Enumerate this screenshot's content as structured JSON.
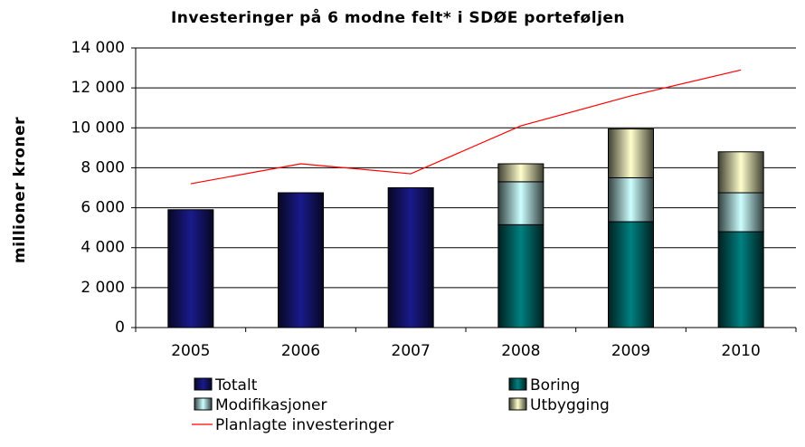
{
  "chart_data": {
    "type": "bar",
    "title": "Investeringer på 6 modne felt* i SDØE porteføljen",
    "ylabel": "millioner kroner",
    "categories": [
      "2005",
      "2006",
      "2007",
      "2008",
      "2009",
      "2010"
    ],
    "series": [
      {
        "name": "Totalt",
        "color": "#1a1a8c",
        "values": [
          5900,
          6750,
          7000,
          null,
          null,
          null
        ]
      },
      {
        "name": "Boring",
        "color": "#008080",
        "values": [
          null,
          null,
          null,
          5150,
          5300,
          4800
        ]
      },
      {
        "name": "Modifikasjoner",
        "color": "#ccffff",
        "values": [
          null,
          null,
          null,
          2150,
          2200,
          1950
        ]
      },
      {
        "name": "Utbygging",
        "color": "#ffffcc",
        "values": [
          null,
          null,
          null,
          900,
          2450,
          2050
        ]
      },
      {
        "name": "Planlagte investeringer",
        "type": "line",
        "color": "#ff0000",
        "values": [
          7200,
          8200,
          7700,
          10100,
          11600,
          12900
        ]
      }
    ],
    "ylim": [
      0,
      14000
    ],
    "yticks": [
      0,
      {
        "value": 2000,
        "label": "2 000"
      },
      {
        "value": 4000,
        "label": "4 000"
      },
      {
        "value": 6000,
        "label": "6 000"
      },
      {
        "value": 8000,
        "label": "8 000"
      },
      {
        "value": 10000,
        "label": "10 000"
      },
      {
        "value": 12000,
        "label": "12 000"
      },
      {
        "value": 14000,
        "label": "14 000"
      }
    ],
    "grid": true
  }
}
